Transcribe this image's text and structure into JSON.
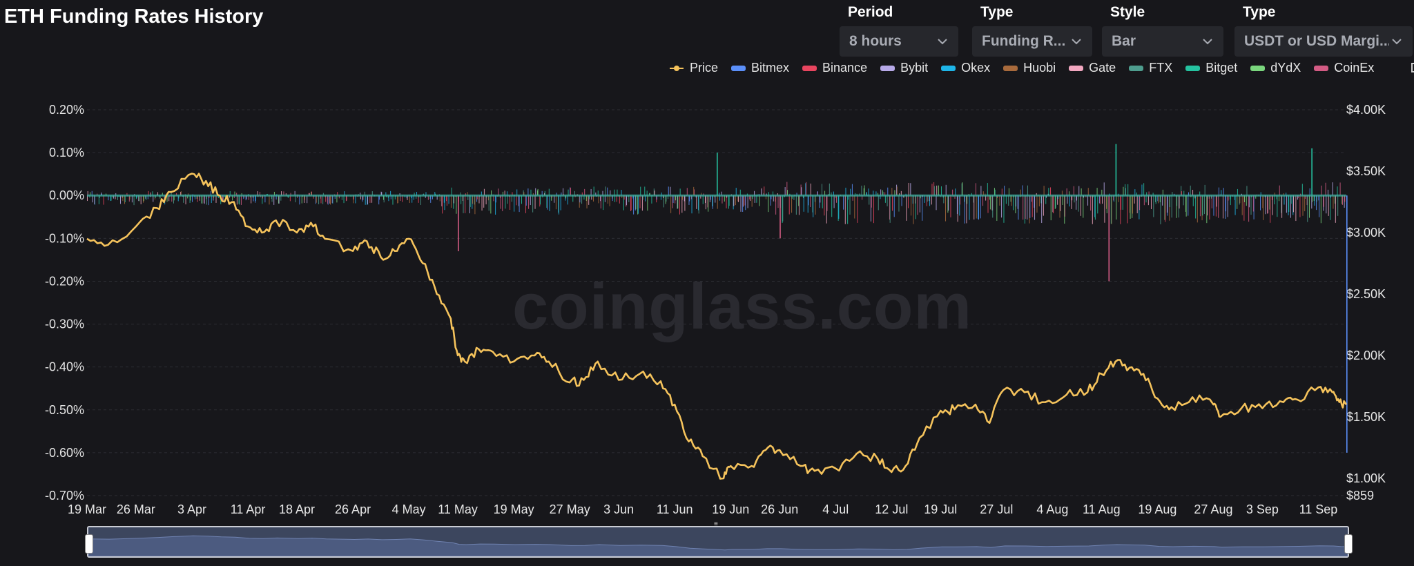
{
  "page": {
    "title": "ETH Funding Rates History",
    "watermark": "coinglass.com"
  },
  "controls": [
    {
      "label": "Period",
      "value": "8 hours"
    },
    {
      "label": "Type",
      "value": "Funding R..."
    },
    {
      "label": "Style",
      "value": "Bar"
    },
    {
      "label": "Type",
      "value": "USDT or USD Margi..."
    }
  ],
  "legend": [
    {
      "name": "Price",
      "color": "#f5c35c",
      "kind": "line"
    },
    {
      "name": "Bitmex",
      "color": "#5b8ff9"
    },
    {
      "name": "Binance",
      "color": "#e8455f"
    },
    {
      "name": "Bybit",
      "color": "#b7a9e8"
    },
    {
      "name": "Okex",
      "color": "#1eb5e8"
    },
    {
      "name": "Huobi",
      "color": "#a86a3c"
    },
    {
      "name": "Gate",
      "color": "#f2a7c0"
    },
    {
      "name": "FTX",
      "color": "#4e9d8e"
    },
    {
      "name": "Bitget",
      "color": "#25c2a0"
    },
    {
      "name": "dYdX",
      "color": "#7ad67d"
    },
    {
      "name": "CoinEx",
      "color": "#d35b84"
    }
  ],
  "chart_data": {
    "type": "bar",
    "title": "ETH Funding Rates History",
    "x_ticks": [
      "19 Mar",
      "26 Mar",
      "3 Apr",
      "11 Apr",
      "18 Apr",
      "26 Apr",
      "4 May",
      "11 May",
      "19 May",
      "27 May",
      "3 Jun",
      "11 Jun",
      "19 Jun",
      "26 Jun",
      "4 Jul",
      "12 Jul",
      "19 Jul",
      "27 Jul",
      "4 Aug",
      "11 Aug",
      "19 Aug",
      "27 Aug",
      "3 Sep",
      "11 Sep"
    ],
    "y_left": {
      "ticks": [
        "0.20%",
        "0.10%",
        "0.00%",
        "-0.10%",
        "-0.20%",
        "-0.30%",
        "-0.40%",
        "-0.50%",
        "-0.60%",
        "-0.70%"
      ],
      "range": [
        -0.7,
        0.2
      ],
      "unit": "%"
    },
    "y_right": {
      "ticks": [
        "$4.00K",
        "$3.50K",
        "$3.00K",
        "$2.50K",
        "$2.00K",
        "$1.50K",
        "$1.00K",
        "$859"
      ],
      "range": [
        859,
        4000
      ]
    },
    "grid": true,
    "legend_position": "top-right",
    "price_series": {
      "name": "Price",
      "color": "#f5c35c",
      "points": [
        [
          "19 Mar",
          2950
        ],
        [
          "22 Mar",
          2900
        ],
        [
          "26 Mar",
          3050
        ],
        [
          "29 Mar",
          3200
        ],
        [
          "31 Mar",
          3330
        ],
        [
          "3 Apr",
          3480
        ],
        [
          "5 Apr",
          3420
        ],
        [
          "7 Apr",
          3300
        ],
        [
          "9 Apr",
          3250
        ],
        [
          "11 Apr",
          3050
        ],
        [
          "13 Apr",
          3000
        ],
        [
          "15 Apr",
          3100
        ],
        [
          "18 Apr",
          3000
        ],
        [
          "20 Apr",
          3080
        ],
        [
          "22 Apr",
          2950
        ],
        [
          "26 Apr",
          2850
        ],
        [
          "28 Apr",
          2930
        ],
        [
          "30 Apr",
          2800
        ],
        [
          "2 May",
          2850
        ],
        [
          "4 May",
          2950
        ],
        [
          "6 May",
          2750
        ],
        [
          "8 May",
          2500
        ],
        [
          "10 May",
          2300
        ],
        [
          "11 May",
          2000
        ],
        [
          "12 May",
          1950
        ],
        [
          "14 May",
          2050
        ],
        [
          "16 May",
          2030
        ],
        [
          "19 May",
          1950
        ],
        [
          "22 May",
          2000
        ],
        [
          "24 May",
          1950
        ],
        [
          "27 May",
          1780
        ],
        [
          "29 May",
          1800
        ],
        [
          "31 May",
          1950
        ],
        [
          "3 Jun",
          1800
        ],
        [
          "6 Jun",
          1850
        ],
        [
          "9 Jun",
          1790
        ],
        [
          "11 Jun",
          1600
        ],
        [
          "13 Jun",
          1300
        ],
        [
          "15 Jun",
          1180
        ],
        [
          "18 Jun",
          1000
        ],
        [
          "19 Jun",
          1100
        ],
        [
          "22 Jun",
          1100
        ],
        [
          "24 Jun",
          1230
        ],
        [
          "26 Jun",
          1230
        ],
        [
          "29 Jun",
          1100
        ],
        [
          "1 Jul",
          1060
        ],
        [
          "4 Jul",
          1080
        ],
        [
          "7 Jul",
          1200
        ],
        [
          "10 Jul",
          1160
        ],
        [
          "12 Jul",
          1050
        ],
        [
          "14 Jul",
          1100
        ],
        [
          "16 Jul",
          1330
        ],
        [
          "19 Jul",
          1550
        ],
        [
          "21 Jul",
          1560
        ],
        [
          "24 Jul",
          1600
        ],
        [
          "26 Jul",
          1450
        ],
        [
          "28 Jul",
          1720
        ],
        [
          "31 Jul",
          1700
        ],
        [
          "3 Aug",
          1620
        ],
        [
          "6 Aug",
          1680
        ],
        [
          "9 Aug",
          1700
        ],
        [
          "11 Aug",
          1850
        ],
        [
          "13 Aug",
          1950
        ],
        [
          "15 Aug",
          1900
        ],
        [
          "17 Aug",
          1850
        ],
        [
          "19 Aug",
          1650
        ],
        [
          "21 Aug",
          1580
        ],
        [
          "24 Aug",
          1660
        ],
        [
          "27 Aug",
          1600
        ],
        [
          "28 Aug",
          1500
        ],
        [
          "31 Aug",
          1570
        ],
        [
          "3 Sep",
          1570
        ],
        [
          "6 Sep",
          1620
        ],
        [
          "8 Sep",
          1640
        ],
        [
          "11 Sep",
          1740
        ],
        [
          "13 Sep",
          1700
        ],
        [
          "14 Sep",
          1620
        ],
        [
          "15 Sep",
          1600
        ]
      ]
    },
    "funding_bars": {
      "note": "Stacked per-exchange funding rate bars every 8 hours; values fluctuate near 0.00%.",
      "typical_range": [
        -0.06,
        0.02
      ],
      "spikes": [
        {
          "date": "11 May",
          "value": -0.13
        },
        {
          "date": "17 Jun",
          "value": 0.1
        },
        {
          "date": "26 Jun",
          "value": -0.1
        },
        {
          "date": "12 Aug",
          "value": -0.2
        },
        {
          "date": "13 Aug",
          "value": 0.12
        },
        {
          "date": "10 Sep",
          "value": 0.11
        },
        {
          "date": "15 Sep",
          "value": -0.6
        }
      ]
    }
  }
}
